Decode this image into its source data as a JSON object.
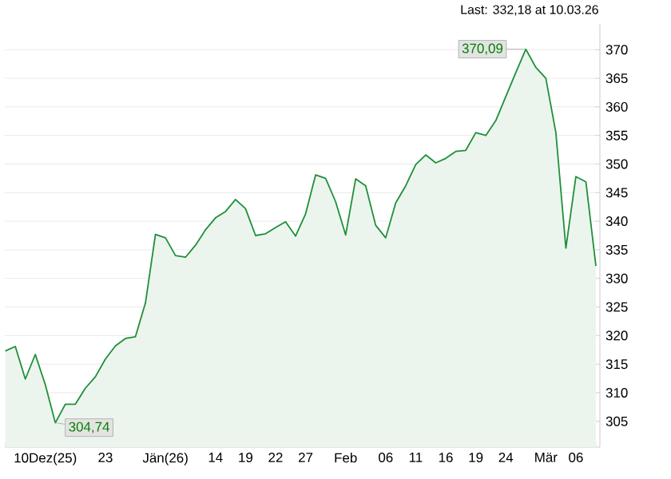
{
  "chart_data": {
    "type": "area",
    "title": "Last: 332,18 at 10.03.26",
    "categories": [
      null,
      null,
      null,
      null,
      "10Dez(25)",
      null,
      null,
      null,
      null,
      null,
      "23",
      null,
      null,
      null,
      null,
      null,
      "Jän(26)",
      null,
      null,
      null,
      null,
      "14",
      null,
      null,
      "19",
      null,
      null,
      "22",
      null,
      null,
      "27",
      null,
      null,
      null,
      "Feb",
      null,
      null,
      null,
      "06",
      null,
      null,
      "11",
      null,
      null,
      "16",
      null,
      null,
      "19",
      null,
      null,
      "24",
      null,
      null,
      null,
      "Mär",
      null,
      null,
      "06",
      null,
      null
    ],
    "series": [
      {
        "color": "#1f8f3a",
        "values": [
          317.3,
          318.1,
          312.4,
          316.7,
          311.4,
          304.74,
          308.0,
          308.0,
          310.8,
          312.8,
          315.9,
          318.2,
          319.5,
          319.8,
          325.7,
          337.7,
          337.1,
          334.0,
          333.7,
          335.8,
          338.5,
          340.6,
          341.7,
          343.8,
          342.2,
          337.5,
          337.8,
          338.9,
          339.9,
          337.4,
          341.3,
          348.1,
          347.5,
          343.4,
          337.6,
          347.4,
          346.2,
          339.3,
          337.1,
          343.2,
          346.2,
          349.9,
          351.6,
          350.2,
          351.0,
          352.2,
          352.4,
          355.5,
          355.0,
          357.6,
          361.8,
          366.0,
          370.09,
          366.9,
          365.0,
          355.5,
          335.3,
          347.8,
          346.9,
          332.18
        ]
      }
    ],
    "ylim": [
      300.5,
      374.5
    ],
    "yticks": [
      305,
      310,
      315,
      320,
      325,
      330,
      335,
      340,
      345,
      350,
      355,
      360,
      365,
      370
    ],
    "grid": "y",
    "tick_labels": "xy",
    "annotations": [
      "370,09",
      "304,74"
    ]
  }
}
